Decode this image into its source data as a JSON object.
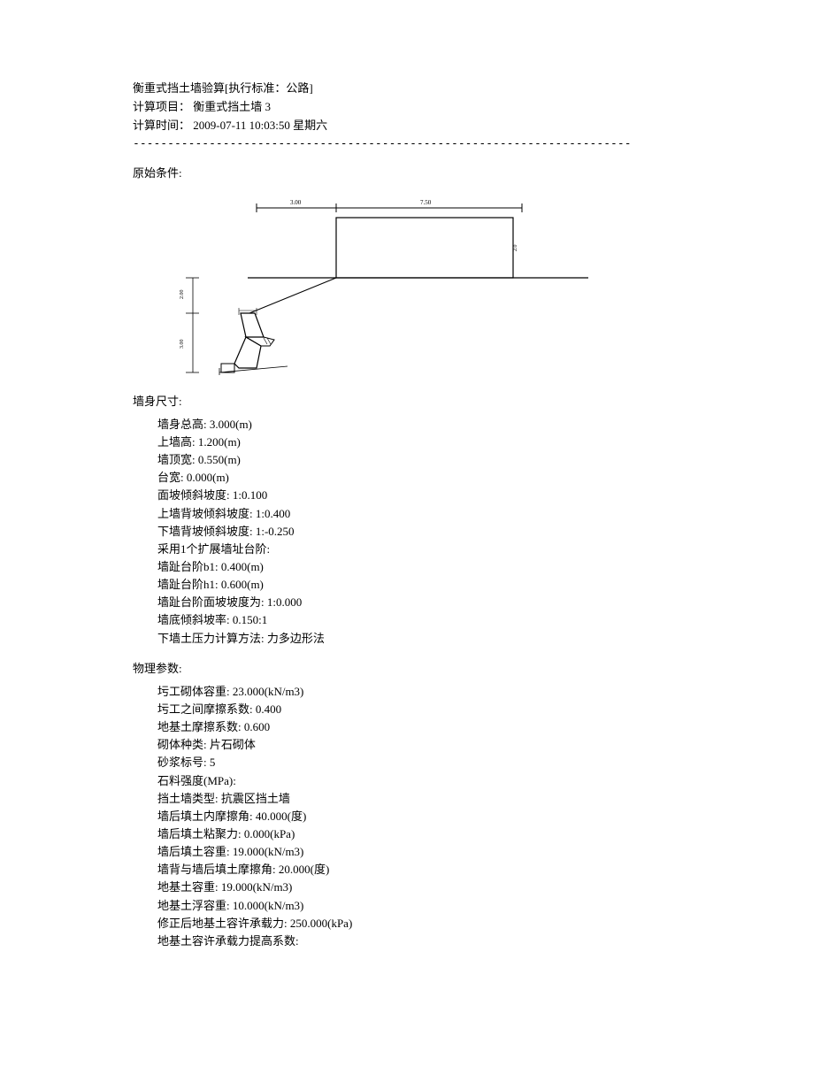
{
  "header": {
    "title_line": "衡重式挡土墙验算[执行标准：公路]",
    "project_line": "计算项目： 衡重式挡土墙 3",
    "time_line": "计算时间： 2009-07-11 10:03:50 星期六",
    "separator": "------------------------------------------------------------------------"
  },
  "section_initial": {
    "title": "原始条件:"
  },
  "diagram": {
    "dim_left": "3.00",
    "dim_right": "7.50",
    "dim_vert_upper": "2.00",
    "dim_vert_lower": "3.00",
    "stroke": "#000000",
    "fill_none": "none",
    "text_color": "#000000",
    "font_size_small": 6
  },
  "wall_dims": {
    "title": "墙身尺寸:",
    "lines": [
      "墙身总高: 3.000(m)",
      "上墙高: 1.200(m)",
      "墙顶宽: 0.550(m)",
      "台宽: 0.000(m)",
      "面坡倾斜坡度: 1:0.100",
      "上墙背坡倾斜坡度: 1:0.400",
      "下墙背坡倾斜坡度: 1:-0.250",
      "采用1个扩展墙址台阶:",
      "墙趾台阶b1: 0.400(m)",
      "墙趾台阶h1: 0.600(m)",
      "墙趾台阶面坡坡度为: 1:0.000",
      "墙底倾斜坡率: 0.150:1",
      "下墙土压力计算方法: 力多边形法"
    ]
  },
  "phys_params": {
    "title": "物理参数:",
    "lines": [
      "圬工砌体容重: 23.000(kN/m3)",
      "圬工之间摩擦系数: 0.400",
      "地基土摩擦系数: 0.600",
      "砌体种类: 片石砌体",
      "砂浆标号: 5",
      "石料强度(MPa):",
      "挡土墙类型: 抗震区挡土墙",
      "墙后填土内摩擦角: 40.000(度)",
      "墙后填土粘聚力: 0.000(kPa)",
      "墙后填土容重: 19.000(kN/m3)",
      "墙背与墙后填土摩擦角: 20.000(度)",
      "地基土容重: 19.000(kN/m3)",
      "地基土浮容重: 10.000(kN/m3)",
      "修正后地基土容许承载力: 250.000(kPa)",
      "地基土容许承载力提高系数:"
    ]
  }
}
